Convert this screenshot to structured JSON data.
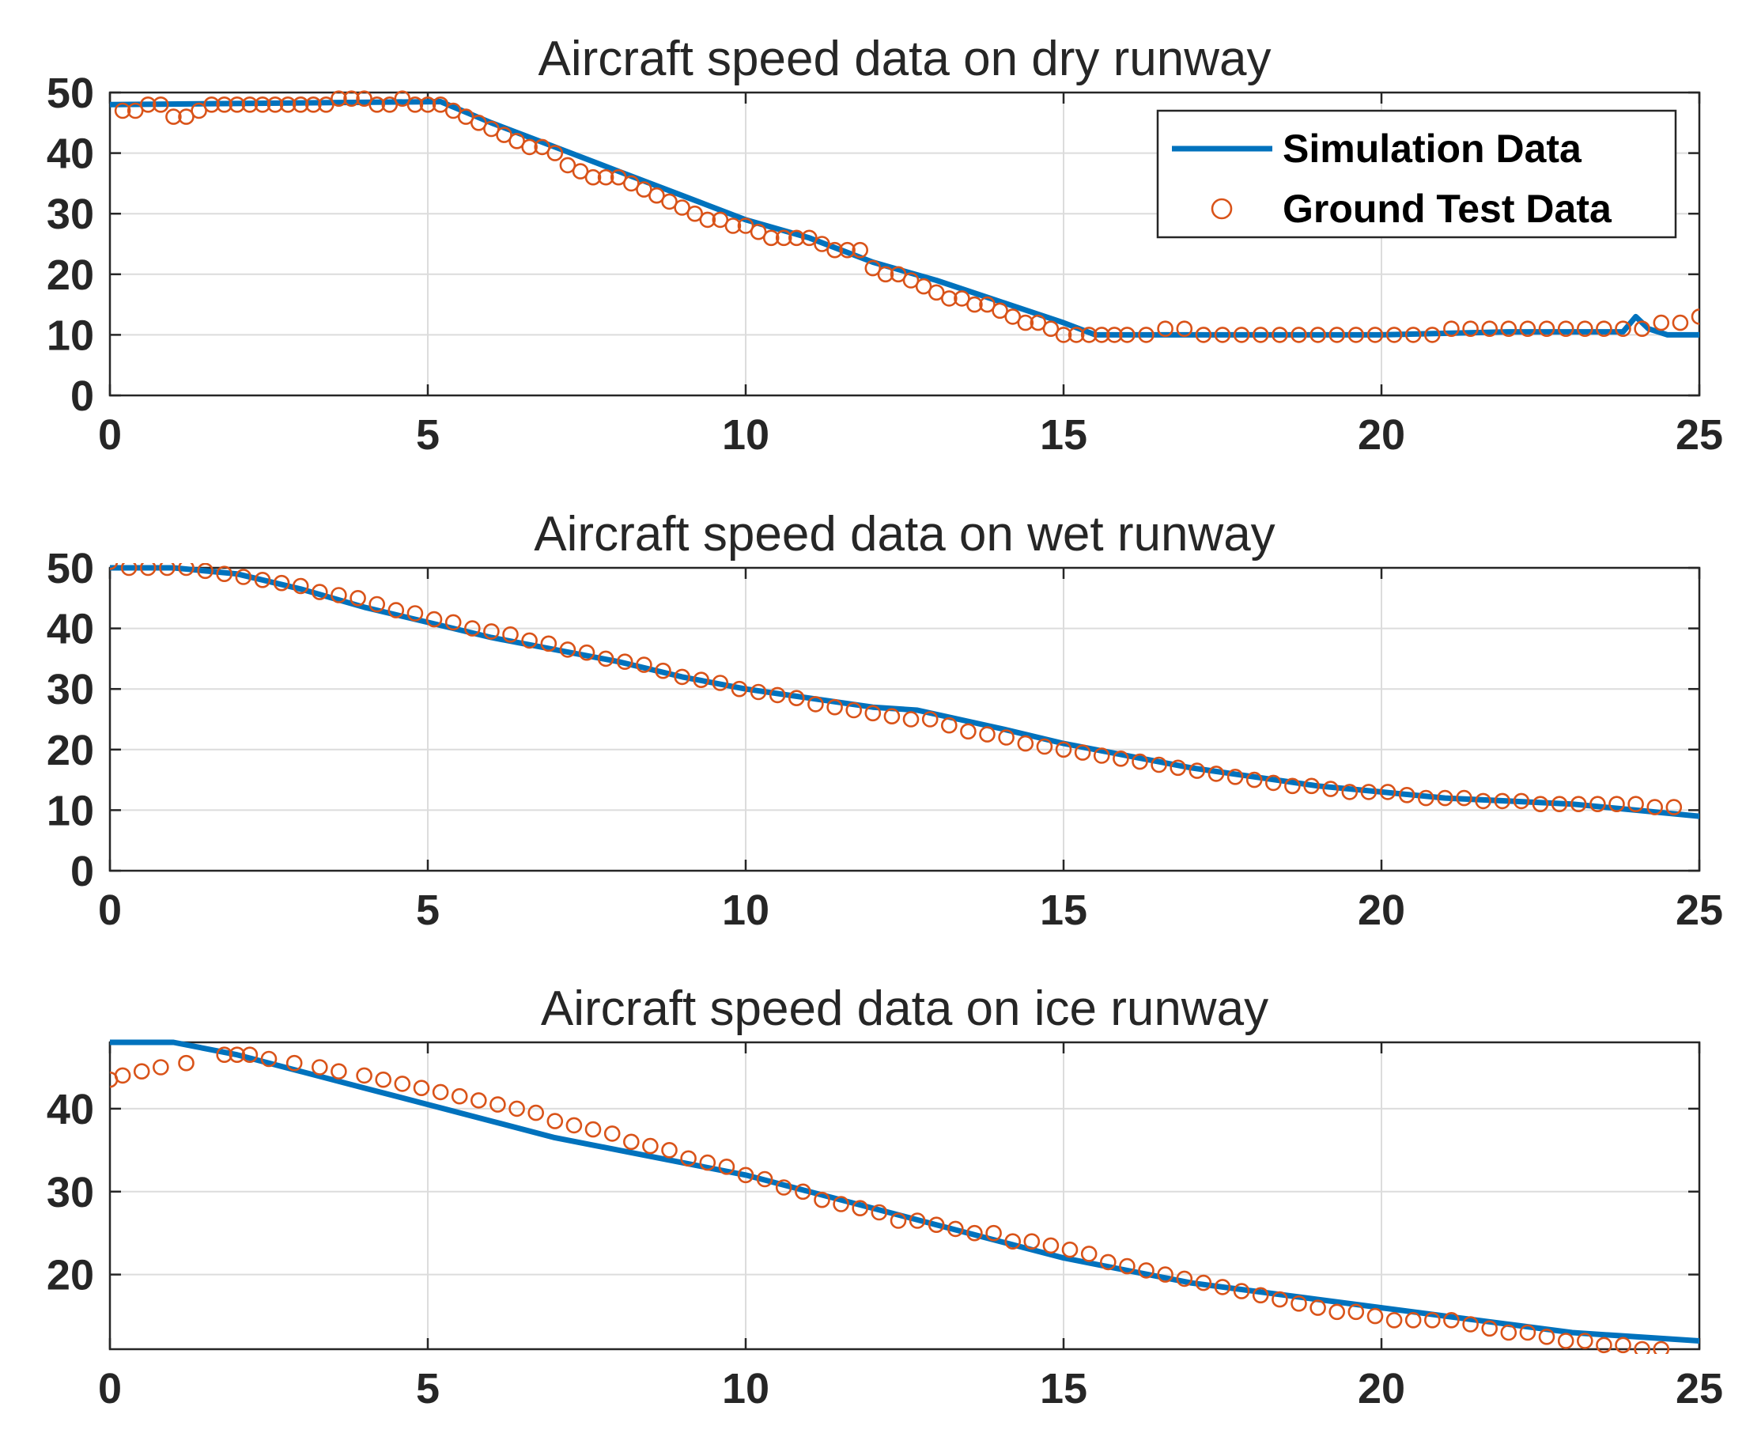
{
  "chart_data": [
    {
      "type": "line",
      "title": "Aircraft speed data on dry runway",
      "xlabel": "",
      "ylabel": "",
      "xlim": [
        0,
        25
      ],
      "ylim": [
        0,
        50
      ],
      "xticks": [
        0,
        5,
        10,
        15,
        20,
        25
      ],
      "yticks": [
        0,
        10,
        20,
        30,
        40,
        50
      ],
      "grid": true,
      "legend": {
        "location": "top-right",
        "entries": [
          {
            "label": "Simulation Data",
            "style": "line",
            "color": "#0072BD"
          },
          {
            "label": "Ground Test Data",
            "style": "circle",
            "color": "#D95319"
          }
        ]
      },
      "series": [
        {
          "name": "Simulation Data",
          "style": "line",
          "color": "#0072BD",
          "x": [
            0,
            5.2,
            6,
            7,
            8,
            9,
            10,
            11,
            12,
            13,
            14,
            15,
            15.5,
            16,
            18,
            20,
            22,
            23.8,
            24,
            24.2,
            24.5,
            25
          ],
          "y": [
            48,
            48.5,
            45,
            41,
            37,
            33,
            29,
            26,
            22,
            19,
            15.5,
            12,
            10,
            10,
            10,
            10,
            10.5,
            10.5,
            13,
            11,
            10,
            10
          ]
        },
        {
          "name": "Ground Test Data",
          "style": "circle",
          "color": "#D95319",
          "x": [
            0.2,
            0.4,
            0.6,
            0.8,
            1.0,
            1.2,
            1.4,
            1.6,
            1.8,
            2.0,
            2.2,
            2.4,
            2.6,
            2.8,
            3.0,
            3.2,
            3.4,
            3.6,
            3.8,
            4.0,
            4.2,
            4.4,
            4.6,
            4.8,
            5.0,
            5.2,
            5.4,
            5.6,
            5.8,
            6.0,
            6.2,
            6.4,
            6.6,
            6.8,
            7.0,
            7.2,
            7.4,
            7.6,
            7.8,
            8.0,
            8.2,
            8.4,
            8.6,
            8.8,
            9.0,
            9.2,
            9.4,
            9.6,
            9.8,
            10.0,
            10.2,
            10.4,
            10.6,
            10.8,
            11.0,
            11.2,
            11.4,
            11.6,
            11.8,
            12.0,
            12.2,
            12.4,
            12.6,
            12.8,
            13.0,
            13.2,
            13.4,
            13.6,
            13.8,
            14.0,
            14.2,
            14.4,
            14.6,
            14.8,
            15.0,
            15.2,
            15.4,
            15.6,
            15.8,
            16.0,
            16.3,
            16.6,
            16.9,
            17.2,
            17.5,
            17.8,
            18.1,
            18.4,
            18.7,
            19.0,
            19.3,
            19.6,
            19.9,
            20.2,
            20.5,
            20.8,
            21.1,
            21.4,
            21.7,
            22.0,
            22.3,
            22.6,
            22.9,
            23.2,
            23.5,
            23.8,
            24.1,
            24.4,
            24.7,
            25.0
          ],
          "y": [
            47,
            47,
            48,
            48,
            46,
            46,
            47,
            48,
            48,
            48,
            48,
            48,
            48,
            48,
            48,
            48,
            48,
            49,
            49,
            49,
            48,
            48,
            49,
            48,
            48,
            48,
            47,
            46,
            45,
            44,
            43,
            42,
            41,
            41,
            40,
            38,
            37,
            36,
            36,
            36,
            35,
            34,
            33,
            32,
            31,
            30,
            29,
            29,
            28,
            28,
            27,
            26,
            26,
            26,
            26,
            25,
            24,
            24,
            24,
            21,
            20,
            20,
            19,
            18,
            17,
            16,
            16,
            15,
            15,
            14,
            13,
            12,
            12,
            11,
            10,
            10,
            10,
            10,
            10,
            10,
            10,
            11,
            11,
            10,
            10,
            10,
            10,
            10,
            10,
            10,
            10,
            10,
            10,
            10,
            10,
            10,
            11,
            11,
            11,
            11,
            11,
            11,
            11,
            11,
            11,
            11,
            11,
            12,
            12,
            13
          ]
        }
      ]
    },
    {
      "type": "line",
      "title": "Aircraft speed data on wet runway",
      "xlabel": "",
      "ylabel": "",
      "xlim": [
        0,
        25
      ],
      "ylim": [
        0,
        50
      ],
      "xticks": [
        0,
        5,
        10,
        15,
        20,
        25
      ],
      "yticks": [
        0,
        10,
        20,
        30,
        40,
        50
      ],
      "grid": true,
      "series": [
        {
          "name": "Simulation Data",
          "style": "line",
          "color": "#0072BD",
          "x": [
            0,
            1,
            2,
            3,
            4,
            5,
            6,
            7,
            8,
            9,
            10,
            11,
            12,
            12.7,
            14,
            15,
            16,
            17,
            18,
            19,
            20,
            21,
            22,
            23,
            24,
            25
          ],
          "y": [
            50,
            50,
            49,
            46.5,
            43.5,
            41,
            38.5,
            36.5,
            34.5,
            32,
            30,
            28.5,
            27,
            26.5,
            23.5,
            21,
            19,
            17,
            15.5,
            14,
            13,
            12,
            11.5,
            11,
            10,
            9
          ]
        },
        {
          "name": "Ground Test Data",
          "style": "circle",
          "color": "#D95319",
          "x": [
            0,
            0.3,
            0.6,
            0.9,
            1.2,
            1.5,
            1.8,
            2.1,
            2.4,
            2.7,
            3.0,
            3.3,
            3.6,
            3.9,
            4.2,
            4.5,
            4.8,
            5.1,
            5.4,
            5.7,
            6.0,
            6.3,
            6.6,
            6.9,
            7.2,
            7.5,
            7.8,
            8.1,
            8.4,
            8.7,
            9.0,
            9.3,
            9.6,
            9.9,
            10.2,
            10.5,
            10.8,
            11.1,
            11.4,
            11.7,
            12.0,
            12.3,
            12.6,
            12.9,
            13.2,
            13.5,
            13.8,
            14.1,
            14.4,
            14.7,
            15.0,
            15.3,
            15.6,
            15.9,
            16.2,
            16.5,
            16.8,
            17.1,
            17.4,
            17.7,
            18.0,
            18.3,
            18.6,
            18.9,
            19.2,
            19.5,
            19.8,
            20.1,
            20.4,
            20.7,
            21.0,
            21.3,
            21.6,
            21.9,
            22.2,
            22.5,
            22.8,
            23.1,
            23.4,
            23.7,
            24.0,
            24.3,
            24.6
          ],
          "y": [
            51,
            50,
            50,
            50,
            50,
            49.5,
            49,
            48.5,
            48,
            47.5,
            47,
            46,
            45.5,
            45,
            44,
            43,
            42.5,
            41.5,
            41,
            40,
            39.5,
            39,
            38,
            37.5,
            36.5,
            36,
            35,
            34.5,
            34,
            33,
            32,
            31.5,
            31,
            30,
            29.5,
            29,
            28.5,
            27.5,
            27,
            26.5,
            26,
            25.5,
            25,
            25,
            24,
            23,
            22.5,
            22,
            21,
            20.5,
            20,
            19.5,
            19,
            18.5,
            18,
            17.5,
            17,
            16.5,
            16,
            15.5,
            15,
            14.5,
            14,
            14,
            13.5,
            13,
            13,
            13,
            12.5,
            12,
            12,
            12,
            11.5,
            11.5,
            11.5,
            11,
            11,
            11,
            11,
            11,
            11,
            10.5,
            10.5
          ]
        }
      ]
    },
    {
      "type": "line",
      "title": "Aircraft speed data on ice runway",
      "xlabel": "",
      "ylabel": "",
      "xlim": [
        0,
        25
      ],
      "ylim": [
        11,
        48
      ],
      "xticks": [
        0,
        5,
        10,
        15,
        20,
        25
      ],
      "yticks": [
        20,
        30,
        40
      ],
      "grid": true,
      "series": [
        {
          "name": "Simulation Data",
          "style": "line",
          "color": "#0072BD",
          "x": [
            0,
            1,
            2,
            3,
            4,
            5,
            6,
            7,
            8,
            9,
            10,
            11,
            12,
            13,
            14,
            15,
            16,
            17,
            18,
            19,
            20,
            21,
            22,
            23,
            24,
            25
          ],
          "y": [
            48,
            48,
            46.5,
            44.5,
            42.5,
            40.5,
            38.5,
            36.5,
            35,
            33.5,
            32,
            30,
            28,
            26,
            24,
            22,
            20.5,
            19,
            18,
            17,
            16,
            15,
            14,
            13,
            12.5,
            12
          ]
        },
        {
          "name": "Ground Test Data",
          "style": "circle",
          "color": "#D95319",
          "x": [
            0,
            0.2,
            0.5,
            0.8,
            1.2,
            1.8,
            2.0,
            2.2,
            2.5,
            2.9,
            3.3,
            3.6,
            4.0,
            4.3,
            4.6,
            4.9,
            5.2,
            5.5,
            5.8,
            6.1,
            6.4,
            6.7,
            7.0,
            7.3,
            7.6,
            7.9,
            8.2,
            8.5,
            8.8,
            9.1,
            9.4,
            9.7,
            10.0,
            10.3,
            10.6,
            10.9,
            11.2,
            11.5,
            11.8,
            12.1,
            12.4,
            12.7,
            13.0,
            13.3,
            13.6,
            13.9,
            14.2,
            14.5,
            14.8,
            15.1,
            15.4,
            15.7,
            16.0,
            16.3,
            16.6,
            16.9,
            17.2,
            17.5,
            17.8,
            18.1,
            18.4,
            18.7,
            19.0,
            19.3,
            19.6,
            19.9,
            20.2,
            20.5,
            20.8,
            21.1,
            21.4,
            21.7,
            22.0,
            22.3,
            22.6,
            22.9,
            23.2,
            23.5,
            23.8,
            24.1,
            24.4
          ],
          "y": [
            43.5,
            44,
            44.5,
            45,
            45.5,
            46.5,
            46.5,
            46.5,
            46,
            45.5,
            45,
            44.5,
            44,
            43.5,
            43,
            42.5,
            42,
            41.5,
            41,
            40.5,
            40,
            39.5,
            38.5,
            38,
            37.5,
            37,
            36,
            35.5,
            35,
            34,
            33.5,
            33,
            32,
            31.5,
            30.5,
            30,
            29,
            28.5,
            28,
            27.5,
            26.5,
            26.5,
            26,
            25.5,
            25,
            25,
            24,
            24,
            23.5,
            23,
            22.5,
            21.5,
            21,
            20.5,
            20,
            19.5,
            19,
            18.5,
            18,
            17.5,
            17,
            16.5,
            16,
            15.5,
            15.5,
            15,
            14.5,
            14.5,
            14.5,
            14.5,
            14,
            13.5,
            13,
            13,
            12.5,
            12,
            12,
            11.5,
            11.5,
            11,
            11
          ]
        }
      ]
    }
  ]
}
